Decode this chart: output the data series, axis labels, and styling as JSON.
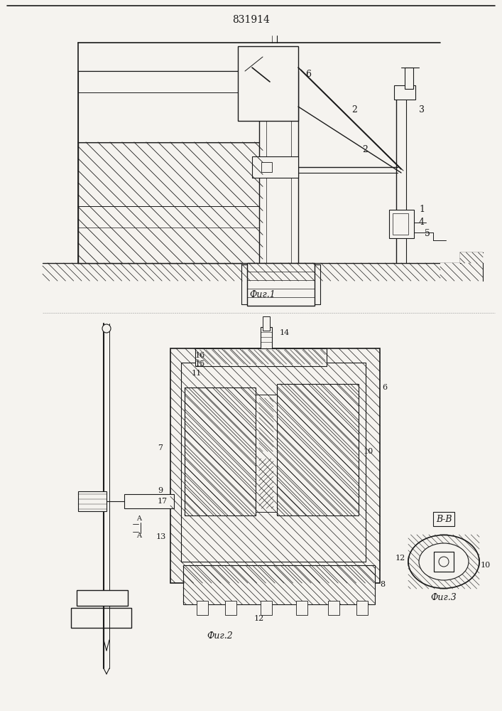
{
  "title": "831914",
  "fig1_label": "Фиг.1",
  "fig2_label": "Фиг.2",
  "fig3_label": "Фиг.3",
  "fig3_section": "В-В",
  "bg": "#f5f3ef",
  "lc": "#1a1a1a"
}
